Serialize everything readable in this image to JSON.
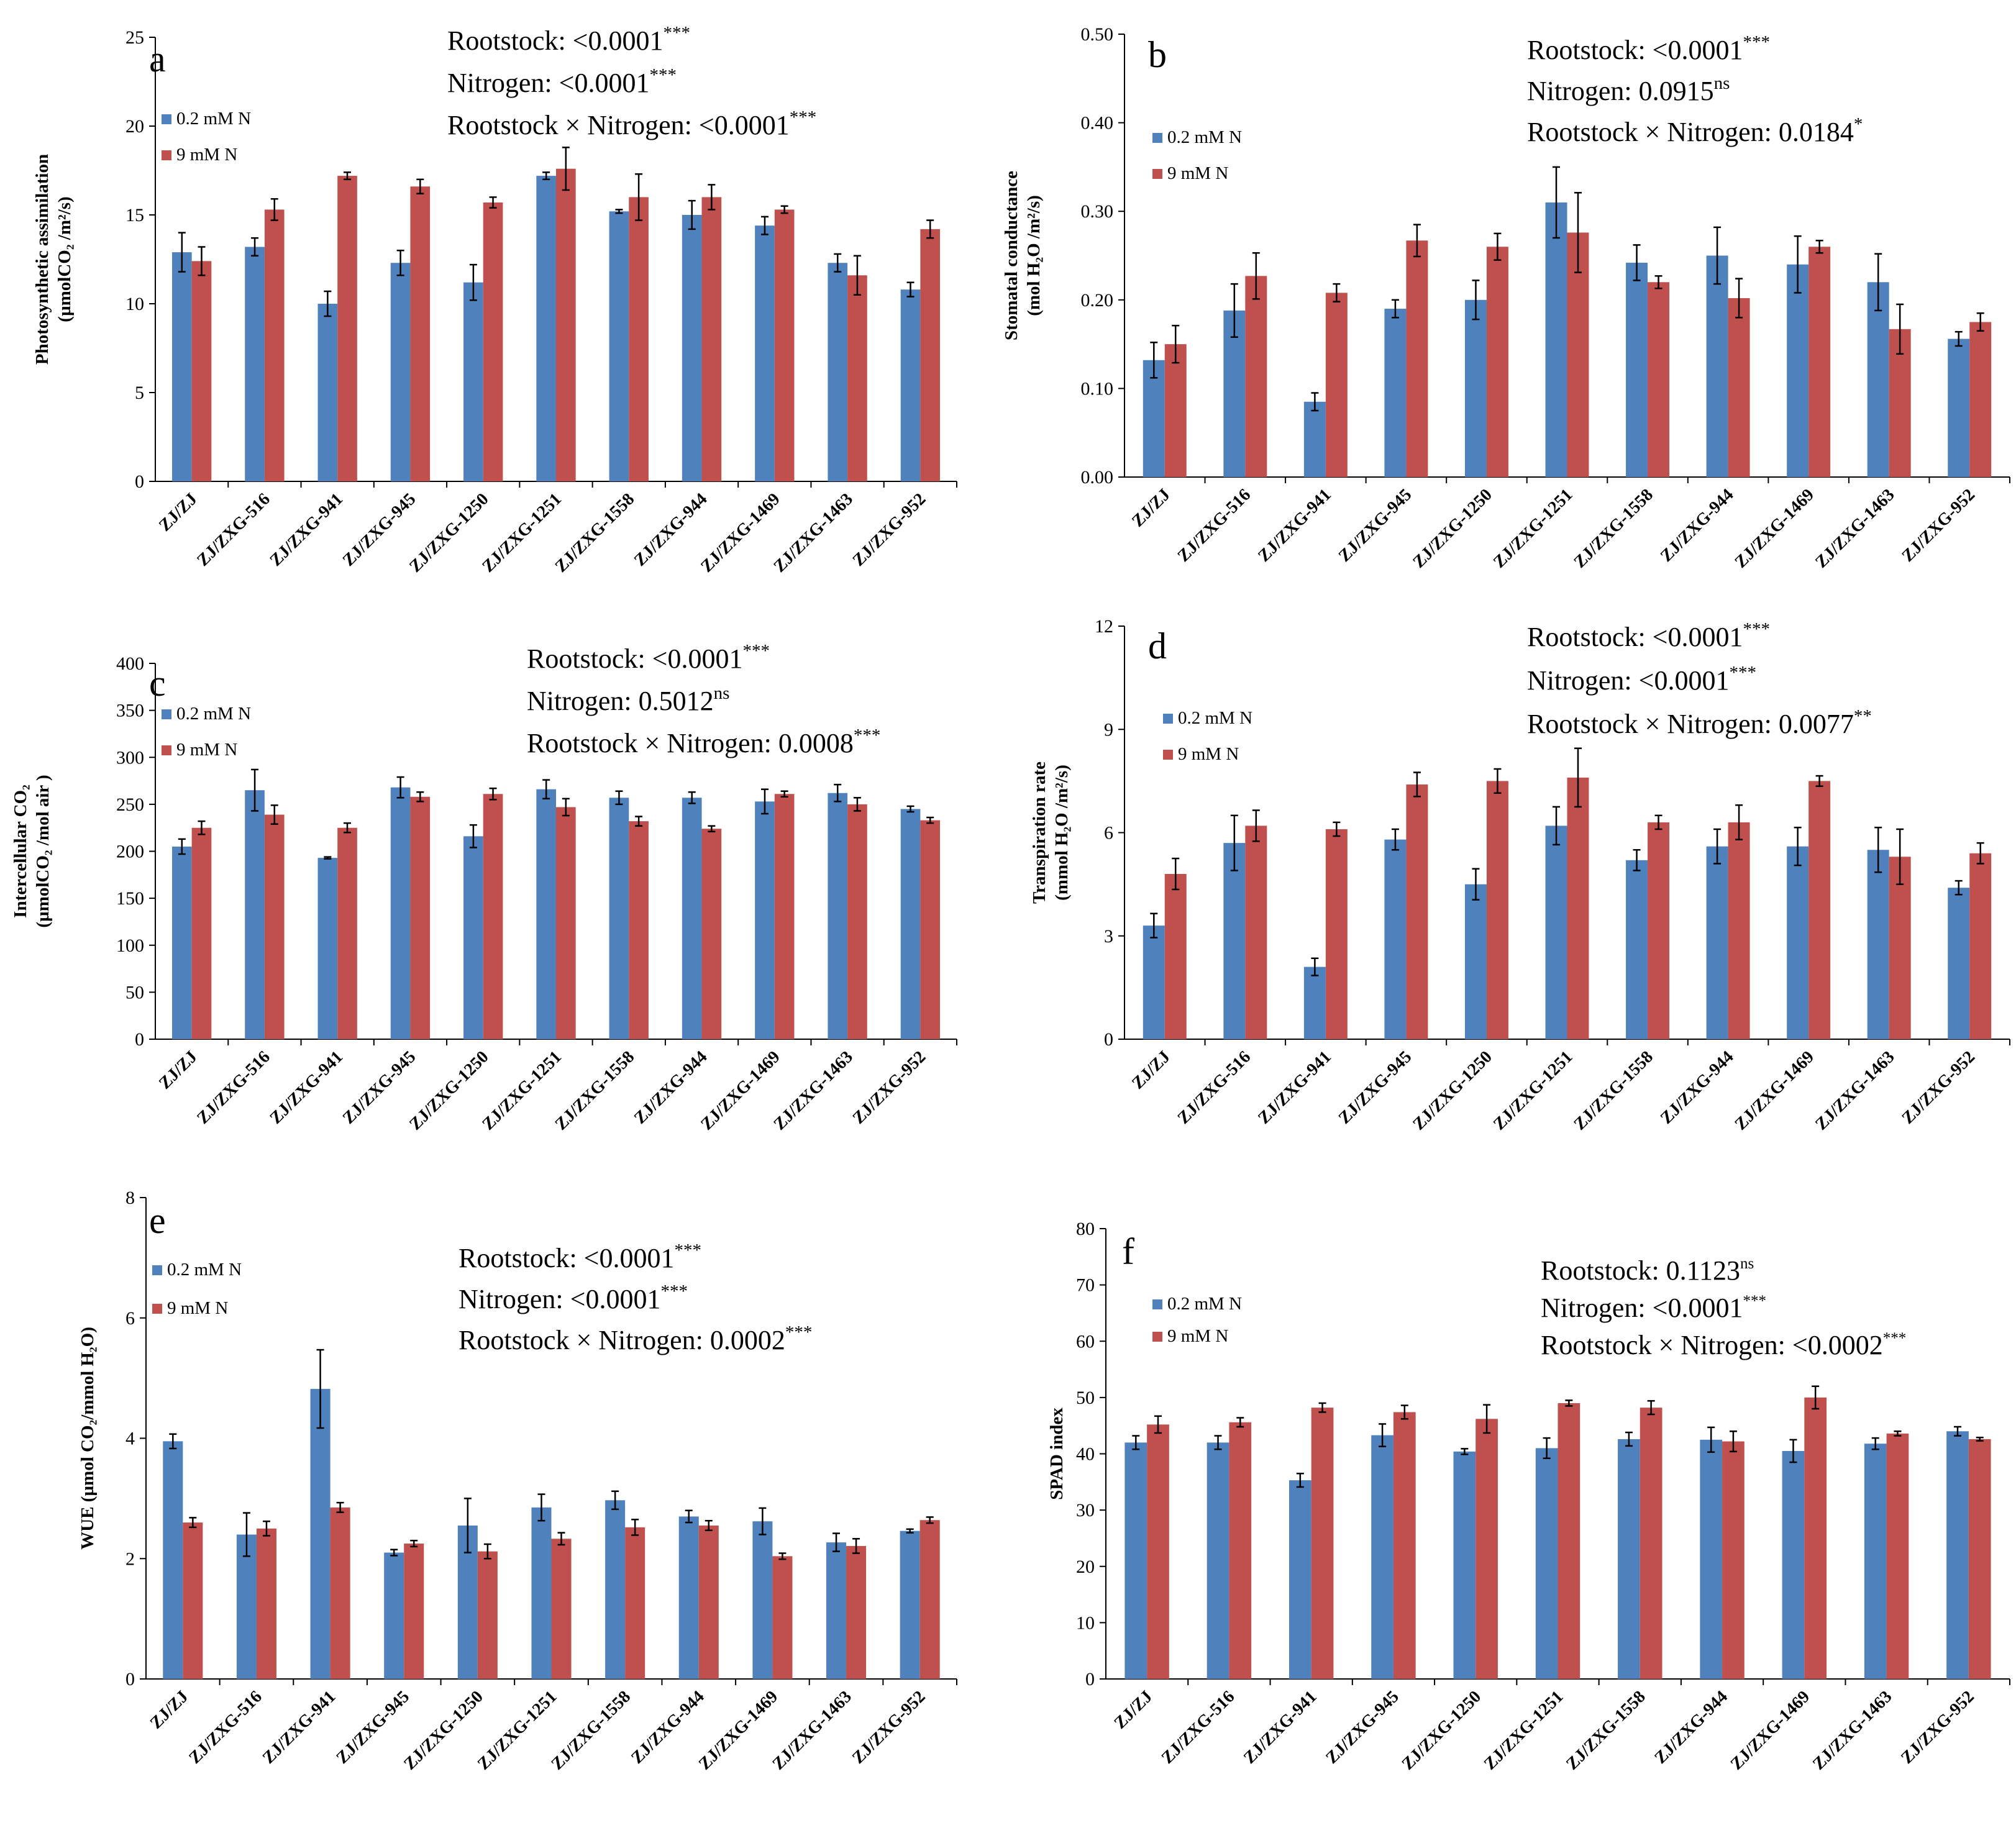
{
  "colors": {
    "low_n": "#4F81BD",
    "high_n": "#C0504D"
  },
  "chart_data": [
    {
      "panel": "a",
      "type": "bar",
      "ylabel_lines": [
        "Photosynthetic assimilation",
        "(µmolCO₂ /m²/s)"
      ],
      "ylim": [
        0,
        25
      ],
      "yticks": [
        0,
        5,
        10,
        15,
        20,
        25
      ],
      "ytick_labels": [
        "0",
        "5",
        "10",
        "15",
        "20",
        "25"
      ],
      "categories": [
        "ZJ/ZJ",
        "ZJ/ZXG-516",
        "ZJ/ZXG-941",
        "ZJ/ZXG-945",
        "ZJ/ZXG-1250",
        "ZJ/ZXG-1251",
        "ZJ/ZXG-1558",
        "ZJ/ZXG-944",
        "ZJ/ZXG-1469",
        "ZJ/ZXG-1463",
        "ZJ/ZXG-952"
      ],
      "series": [
        {
          "name": "0.2 mM N",
          "values": [
            12.9,
            13.2,
            10.0,
            12.3,
            11.2,
            17.2,
            15.2,
            15.0,
            14.4,
            12.3,
            10.8
          ],
          "errors": [
            1.1,
            0.5,
            0.7,
            0.7,
            1.0,
            0.2,
            0.1,
            0.8,
            0.5,
            0.5,
            0.4
          ]
        },
        {
          "name": "9 mM N",
          "values": [
            12.4,
            15.3,
            17.2,
            16.6,
            15.7,
            17.6,
            16.0,
            16.0,
            15.3,
            11.6,
            14.2
          ],
          "errors": [
            0.8,
            0.6,
            0.2,
            0.4,
            0.3,
            1.2,
            1.3,
            0.7,
            0.2,
            1.1,
            0.5
          ]
        }
      ],
      "stats": [
        {
          "label": "Rootstock:  <0.0001",
          "sig": "***"
        },
        {
          "label": "Nitrogen: <0.0001",
          "sig": "***"
        },
        {
          "label": "Rootstock × Nitrogen: <0.0001",
          "sig": "***"
        }
      ]
    },
    {
      "panel": "b",
      "type": "bar",
      "ylabel_lines": [
        "Stomatal conductance",
        "(mol H₂O /m²/s)"
      ],
      "ylim": [
        0,
        0.5
      ],
      "yticks": [
        0,
        0.1,
        0.2,
        0.3,
        0.4,
        0.5
      ],
      "ytick_labels": [
        "0.00",
        "0.10",
        "0.20",
        "0.30",
        "0.40",
        "0.50"
      ],
      "categories": [
        "ZJ/ZJ",
        "ZJ/ZXG-516",
        "ZJ/ZXG-941",
        "ZJ/ZXG-945",
        "ZJ/ZXG-1250",
        "ZJ/ZXG-1251",
        "ZJ/ZXG-1558",
        "ZJ/ZXG-944",
        "ZJ/ZXG-1469",
        "ZJ/ZXG-1463",
        "ZJ/ZXG-952"
      ],
      "series": [
        {
          "name": "0.2 mM N",
          "values": [
            0.132,
            0.188,
            0.085,
            0.19,
            0.2,
            0.31,
            0.242,
            0.25,
            0.24,
            0.22,
            0.156
          ],
          "errors": [
            0.02,
            0.03,
            0.01,
            0.01,
            0.022,
            0.04,
            0.02,
            0.032,
            0.032,
            0.032,
            0.008
          ]
        },
        {
          "name": "9 mM N",
          "values": [
            0.15,
            0.227,
            0.208,
            0.267,
            0.26,
            0.276,
            0.22,
            0.202,
            0.26,
            0.167,
            0.175
          ],
          "errors": [
            0.021,
            0.026,
            0.01,
            0.018,
            0.015,
            0.045,
            0.007,
            0.022,
            0.007,
            0.028,
            0.01
          ]
        }
      ],
      "stats": [
        {
          "label": "Rootstock:  <0.0001",
          "sig": "***"
        },
        {
          "label": "Nitrogen: 0.0915",
          "sig": "ns"
        },
        {
          "label": "Rootstock × Nitrogen: 0.0184",
          "sig": "*"
        }
      ]
    },
    {
      "panel": "c",
      "type": "bar",
      "ylabel_lines": [
        "Intercellular CO₂",
        "(µmolCO₂ /mol air )"
      ],
      "ylim": [
        0,
        400
      ],
      "yticks": [
        0,
        50,
        100,
        150,
        200,
        250,
        300,
        350,
        400
      ],
      "ytick_labels": [
        "0",
        "50",
        "100",
        "150",
        "200",
        "250",
        "300",
        "350",
        "400"
      ],
      "categories": [
        "ZJ/ZJ",
        "ZJ/ZXG-516",
        "ZJ/ZXG-941",
        "ZJ/ZXG-945",
        "ZJ/ZXG-1250",
        "ZJ/ZXG-1251",
        "ZJ/ZXG-1558",
        "ZJ/ZXG-944",
        "ZJ/ZXG-1469",
        "ZJ/ZXG-1463",
        "ZJ/ZXG-952"
      ],
      "series": [
        {
          "name": "0.2 mM N",
          "values": [
            205,
            265,
            193,
            268,
            216,
            266,
            257,
            257,
            253,
            262,
            245
          ],
          "errors": [
            8,
            22,
            1,
            11,
            12,
            10,
            7,
            6,
            13,
            9,
            3
          ]
        },
        {
          "name": "9 mM N",
          "values": [
            225,
            239,
            225,
            258,
            261,
            247,
            232,
            224,
            261,
            250,
            233
          ],
          "errors": [
            7,
            10,
            5,
            5,
            6,
            9,
            5,
            3,
            3,
            7,
            3
          ]
        }
      ],
      "stats": [
        {
          "label": "Rootstock:  <0.0001",
          "sig": "***"
        },
        {
          "label": "Nitrogen: 0.5012",
          "sig": "ns"
        },
        {
          "label": "Rootstock × Nitrogen: 0.0008",
          "sig": "***"
        }
      ]
    },
    {
      "panel": "d",
      "type": "bar",
      "ylabel_lines": [
        "Transpiration rate",
        "(mmol H₂O /m²/s)"
      ],
      "ylim": [
        0,
        12
      ],
      "yticks": [
        0,
        3,
        6,
        9,
        12
      ],
      "ytick_labels": [
        "0",
        "3",
        "6",
        "9",
        "12"
      ],
      "categories": [
        "ZJ/ZJ",
        "ZJ/ZXG-516",
        "ZJ/ZXG-941",
        "ZJ/ZXG-945",
        "ZJ/ZXG-1250",
        "ZJ/ZXG-1251",
        "ZJ/ZXG-1558",
        "ZJ/ZXG-944",
        "ZJ/ZXG-1469",
        "ZJ/ZXG-1463",
        "ZJ/ZXG-952"
      ],
      "series": [
        {
          "name": "0.2 mM N",
          "values": [
            3.3,
            5.7,
            2.1,
            5.8,
            4.5,
            6.2,
            5.2,
            5.6,
            5.6,
            5.5,
            4.4
          ],
          "errors": [
            0.35,
            0.8,
            0.25,
            0.3,
            0.45,
            0.55,
            0.3,
            0.5,
            0.55,
            0.65,
            0.2
          ]
        },
        {
          "name": "9 mM N",
          "values": [
            4.8,
            6.2,
            6.1,
            7.4,
            7.5,
            7.6,
            6.3,
            6.3,
            7.5,
            5.3,
            5.4
          ],
          "errors": [
            0.45,
            0.45,
            0.2,
            0.35,
            0.35,
            0.85,
            0.2,
            0.5,
            0.15,
            0.8,
            0.3
          ]
        }
      ],
      "stats": [
        {
          "label": "Rootstock:  <0.0001",
          "sig": "***"
        },
        {
          "label": "Nitrogen: <0.0001",
          "sig": "***"
        },
        {
          "label": "Rootstock × Nitrogen: 0.0077",
          "sig": "**"
        }
      ]
    },
    {
      "panel": "e",
      "type": "bar",
      "ylabel_lines": [
        "WUE (µmol CO₂/mmol H₂O)"
      ],
      "ylim": [
        0,
        8
      ],
      "yticks": [
        0,
        2,
        4,
        6,
        8
      ],
      "ytick_labels": [
        "0",
        "2",
        "4",
        "6",
        "8"
      ],
      "categories": [
        "ZJ/ZJ",
        "ZJ/ZXG-516",
        "ZJ/ZXG-941",
        "ZJ/ZXG-945",
        "ZJ/ZXG-1250",
        "ZJ/ZXG-1251",
        "ZJ/ZXG-1558",
        "ZJ/ZXG-944",
        "ZJ/ZXG-1469",
        "ZJ/ZXG-1463",
        "ZJ/ZXG-952"
      ],
      "series": [
        {
          "name": "0.2 mM N",
          "values": [
            3.95,
            2.4,
            4.82,
            2.1,
            2.55,
            2.85,
            2.97,
            2.7,
            2.62,
            2.27,
            2.46
          ],
          "errors": [
            0.12,
            0.36,
            0.65,
            0.05,
            0.45,
            0.22,
            0.15,
            0.1,
            0.22,
            0.15,
            0.03
          ]
        },
        {
          "name": "9 mM N",
          "values": [
            2.6,
            2.5,
            2.85,
            2.25,
            2.12,
            2.33,
            2.52,
            2.55,
            2.04,
            2.21,
            2.64
          ],
          "errors": [
            0.08,
            0.12,
            0.08,
            0.05,
            0.12,
            0.1,
            0.13,
            0.08,
            0.05,
            0.12,
            0.05
          ]
        }
      ],
      "stats": [
        {
          "label": "Rootstock:  <0.0001",
          "sig": "***"
        },
        {
          "label": "Nitrogen: <0.0001",
          "sig": "***"
        },
        {
          "label": "Rootstock × Nitrogen: 0.0002",
          "sig": "***"
        }
      ]
    },
    {
      "panel": "f",
      "type": "bar",
      "ylabel_lines": [
        "SPAD index"
      ],
      "ylim": [
        0,
        80
      ],
      "yticks": [
        0,
        10,
        20,
        30,
        40,
        50,
        60,
        70,
        80
      ],
      "ytick_labels": [
        "0",
        "10",
        "20",
        "30",
        "40",
        "50",
        "60",
        "70",
        "80"
      ],
      "categories": [
        "ZJ/ZJ",
        "ZJ/ZXG-516",
        "ZJ/ZXG-941",
        "ZJ/ZXG-945",
        "ZJ/ZXG-1250",
        "ZJ/ZXG-1251",
        "ZJ/ZXG-1558",
        "ZJ/ZXG-944",
        "ZJ/ZXG-1469",
        "ZJ/ZXG-1463",
        "ZJ/ZXG-952"
      ],
      "series": [
        {
          "name": "0.2 mM N",
          "values": [
            42.0,
            42.0,
            35.3,
            43.3,
            40.4,
            41.0,
            42.6,
            42.5,
            40.5,
            41.8,
            44.0
          ],
          "errors": [
            1.2,
            1.2,
            1.2,
            2.0,
            0.5,
            1.8,
            1.2,
            2.2,
            2.0,
            1.0,
            0.8
          ]
        },
        {
          "name": "9 mM N",
          "values": [
            45.2,
            45.6,
            48.2,
            47.4,
            46.2,
            49.0,
            48.2,
            42.2,
            50.0,
            43.6,
            42.6
          ],
          "errors": [
            1.5,
            0.8,
            0.8,
            1.2,
            2.5,
            0.5,
            1.2,
            1.8,
            2.0,
            0.4,
            0.3
          ]
        }
      ],
      "stats": [
        {
          "label": "Rootstock:  0.1123",
          "sig": "ns"
        },
        {
          "label": "Nitrogen: <0.0001",
          "sig": "***"
        },
        {
          "label": "Rootstock × Nitrogen: <0.0002",
          "sig": "***"
        }
      ]
    }
  ]
}
